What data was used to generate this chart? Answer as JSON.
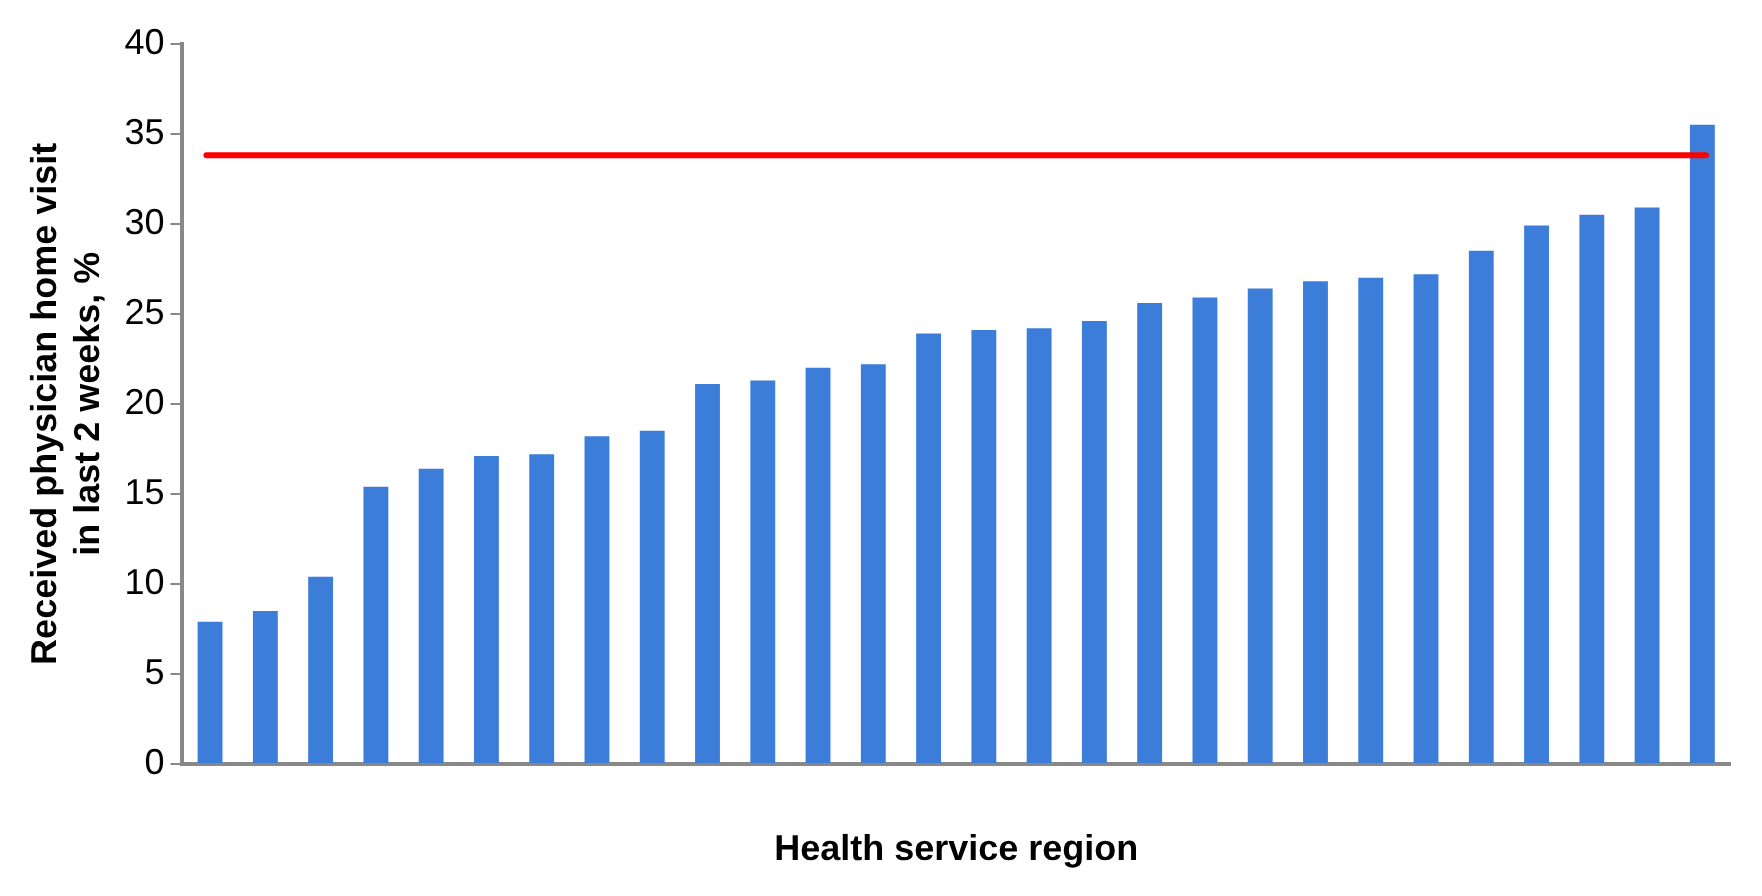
{
  "chart_data": {
    "type": "bar",
    "xlabel": "Health service region",
    "ylabel": "Received physician home visit\nin last 2 weeks, %",
    "categories": [
      null,
      null,
      null,
      null,
      null,
      null,
      null,
      null,
      null,
      null,
      null,
      null,
      null,
      null,
      null,
      null,
      null,
      null,
      null,
      null,
      null,
      null,
      null,
      null,
      null,
      null,
      null,
      null
    ],
    "values": [
      7.9,
      8.5,
      10.4,
      15.4,
      16.4,
      17.1,
      17.2,
      18.2,
      18.5,
      21.1,
      21.3,
      22.0,
      22.2,
      23.9,
      24.1,
      24.2,
      24.6,
      25.6,
      25.9,
      26.4,
      26.8,
      27.0,
      27.2,
      28.5,
      29.9,
      30.5,
      30.9,
      35.5
    ],
    "color": "#3c7dd9",
    "ylim": [
      0,
      40
    ],
    "yticks": [
      0,
      5,
      10,
      15,
      20,
      25,
      30,
      35,
      40
    ],
    "grid": false,
    "legend": false,
    "ref_lines": [
      {
        "axis": "y",
        "value": 33.8,
        "color": "#ff0000",
        "line_style": "solid"
      }
    ]
  }
}
